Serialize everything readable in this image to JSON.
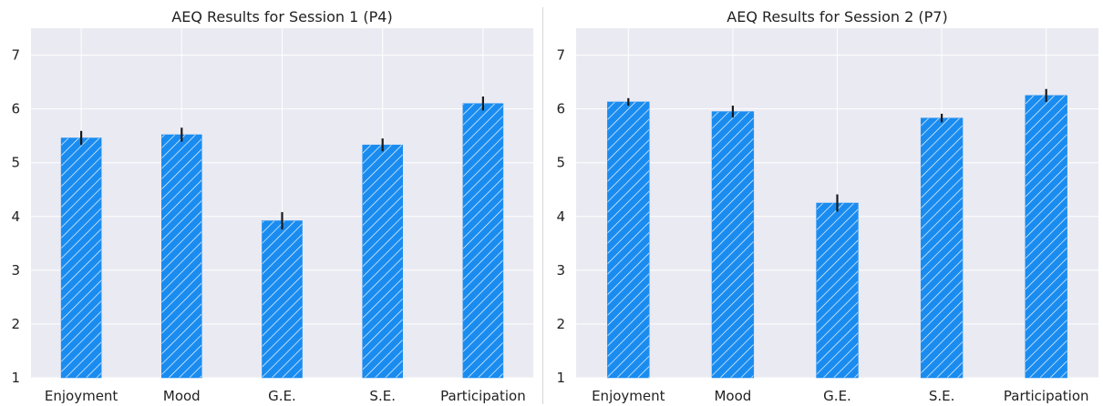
{
  "colors": {
    "background": "#eaeaf2",
    "grid": "#ffffff",
    "bar": "#1a8cf0",
    "hatch": "#ffffff",
    "error": "#1a1a1a"
  },
  "chart_data": [
    {
      "type": "bar",
      "title": "AEQ Results for Session 1 (P4)",
      "xlabel": "",
      "ylabel": "",
      "categories": [
        "Enjoyment",
        "Mood",
        "G.E.",
        "S.E.",
        "Participation"
      ],
      "values": [
        5.46,
        5.52,
        3.92,
        5.33,
        6.1
      ],
      "errors": [
        0.13,
        0.13,
        0.16,
        0.12,
        0.13
      ],
      "ylim": [
        1,
        7.5
      ],
      "yticks": [
        1,
        2,
        3,
        4,
        5,
        6,
        7
      ],
      "grid": true,
      "hatch": "diagonal"
    },
    {
      "type": "bar",
      "title": "AEQ Results for Session 2 (P7)",
      "xlabel": "",
      "ylabel": "",
      "categories": [
        "Enjoyment",
        "Mood",
        "G.E.",
        "S.E.",
        "Participation"
      ],
      "values": [
        6.13,
        5.95,
        4.25,
        5.83,
        6.25
      ],
      "errors": [
        0.07,
        0.11,
        0.16,
        0.08,
        0.12
      ],
      "ylim": [
        1,
        7.5
      ],
      "yticks": [
        1,
        2,
        3,
        4,
        5,
        6,
        7
      ],
      "grid": true,
      "hatch": "diagonal"
    }
  ]
}
